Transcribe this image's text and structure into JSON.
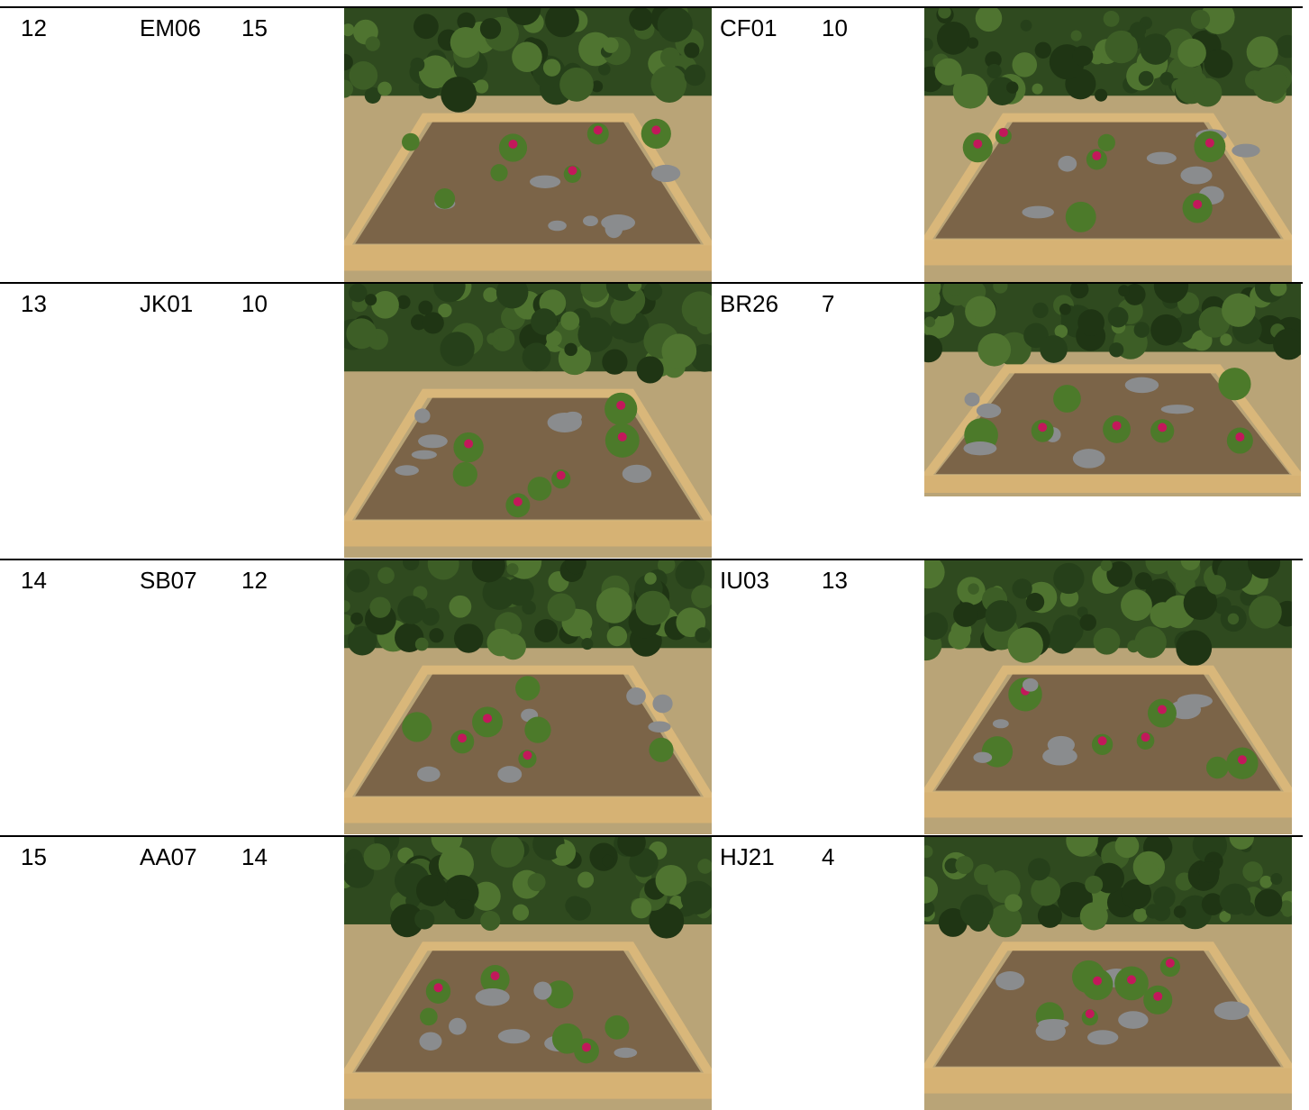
{
  "table": {
    "rows": [
      {
        "no": 12,
        "left": {
          "code": "EM06",
          "score": 15
        },
        "right": {
          "code": "CF01",
          "score": 10
        }
      },
      {
        "no": 13,
        "left": {
          "code": "JK01",
          "score": 10
        },
        "right": {
          "code": "BR26",
          "score": 7
        }
      },
      {
        "no": 14,
        "left": {
          "code": "SB07",
          "score": 12
        },
        "right": {
          "code": "IU03",
          "score": 13
        }
      },
      {
        "no": 15,
        "left": {
          "code": "AA07",
          "score": 14
        },
        "right": {
          "code": "HJ21",
          "score": 4
        }
      }
    ]
  }
}
